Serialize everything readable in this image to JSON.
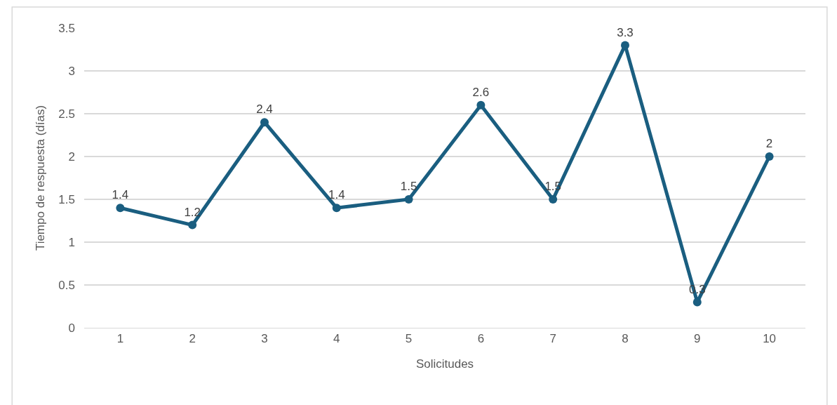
{
  "chart_data": {
    "type": "line",
    "xlabel": "Solicitudes",
    "ylabel": "Tiempo de respuesta (días)",
    "categories": [
      "1",
      "2",
      "3",
      "4",
      "5",
      "6",
      "7",
      "8",
      "9",
      "10"
    ],
    "series": [
      {
        "color": "#1a5e80",
        "values": [
          1.4,
          1.2,
          2.4,
          1.4,
          1.5,
          2.6,
          1.5,
          3.3,
          0.3,
          2
        ]
      }
    ],
    "ylim": [
      0,
      3.5
    ],
    "yticks": [
      0,
      0.5,
      1,
      1.5,
      2,
      2.5,
      3,
      3.5
    ],
    "grid": "y",
    "marker": "circle",
    "line_style": "solid",
    "data_labels": true,
    "legend": false
  }
}
